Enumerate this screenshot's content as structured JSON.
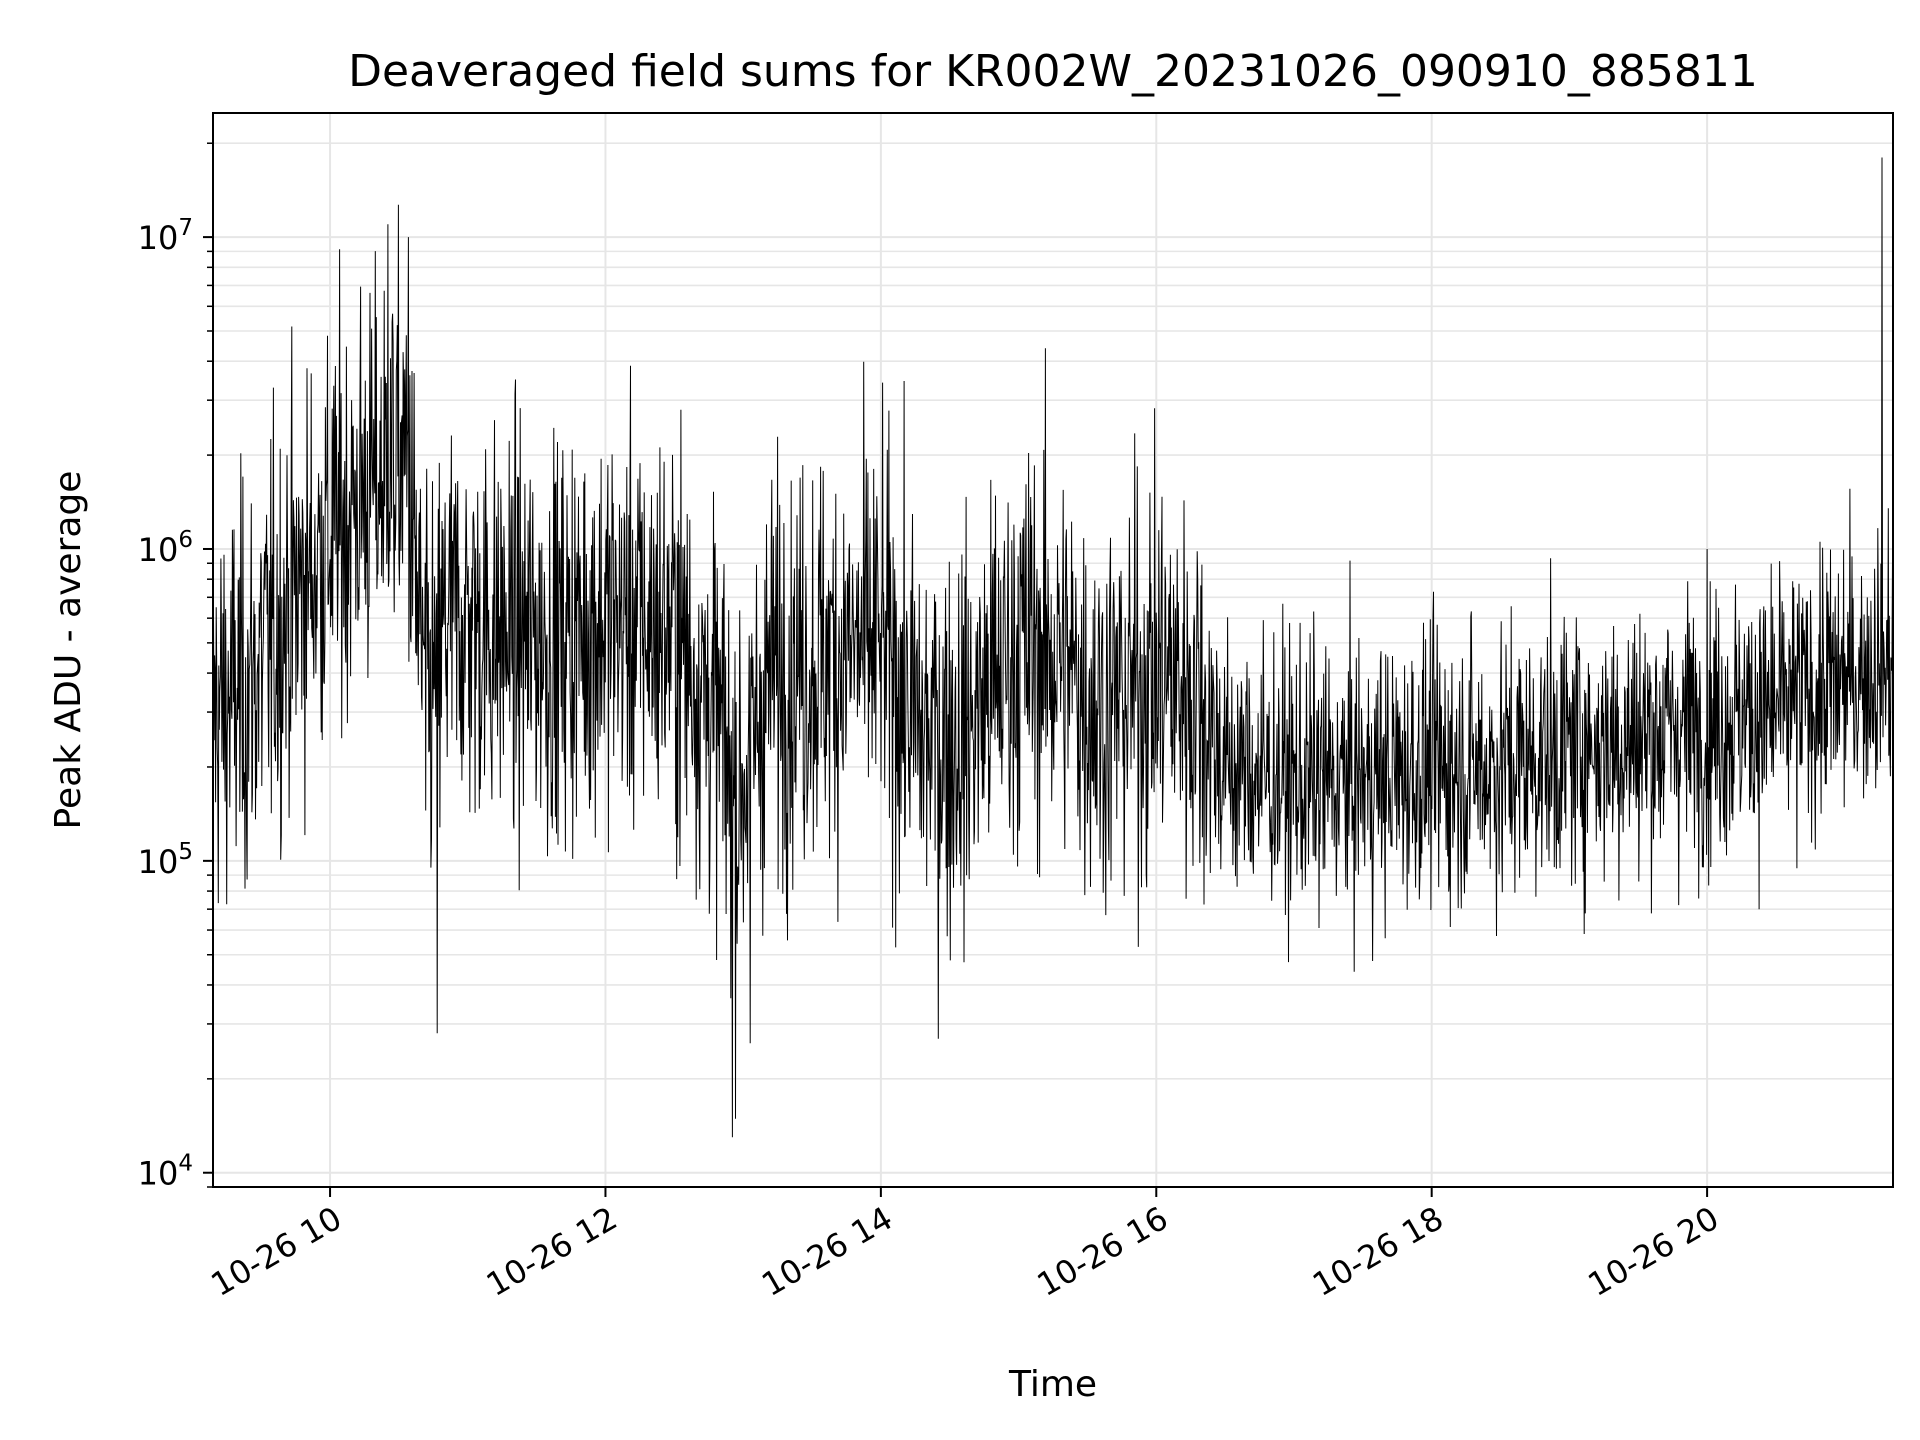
{
  "chart_data": {
    "type": "line",
    "title": "Deaveraged field sums for KR002W_20231026_090910_885811",
    "xlabel": "Time",
    "ylabel": "Peak ADU - average",
    "yscale": "log",
    "ylim": [
      9000,
      25000000
    ],
    "xlim_hours": [
      9.15,
      21.35
    ],
    "x_tick_labels": [
      "10-26 10",
      "10-26 12",
      "10-26 14",
      "10-26 16",
      "10-26 18",
      "10-26 20"
    ],
    "x_tick_hours": [
      10,
      12,
      14,
      16,
      18,
      20
    ],
    "y_ticks": [
      {
        "base": "10",
        "exp": "4",
        "value": 10000
      },
      {
        "base": "10",
        "exp": "5",
        "value": 100000
      },
      {
        "base": "10",
        "exp": "6",
        "value": 1000000
      },
      {
        "base": "10",
        "exp": "7",
        "value": 10000000
      }
    ],
    "grid": true,
    "series": [
      {
        "color": "#000000",
        "profile": {
          "x_hours": [
            9.15,
            9.4,
            9.7,
            10.0,
            10.3,
            10.55,
            10.7,
            10.85,
            11.2,
            11.6,
            12.0,
            12.5,
            12.8,
            12.95,
            13.2,
            13.6,
            14.0,
            14.3,
            14.6,
            15.0,
            15.3,
            15.6,
            16.0,
            16.3,
            16.5,
            17.0,
            17.5,
            18.0,
            18.5,
            19.0,
            19.5,
            20.0,
            20.5,
            21.0,
            21.35
          ],
          "median": [
            300000,
            350000,
            650000,
            1100000,
            1600000,
            2000000,
            300000,
            600000,
            550000,
            500000,
            600000,
            550000,
            300000,
            150000,
            400000,
            450000,
            500000,
            250000,
            250000,
            500000,
            450000,
            300000,
            400000,
            350000,
            200000,
            180000,
            180000,
            200000,
            200000,
            230000,
            250000,
            280000,
            300000,
            380000,
            450000
          ]
        },
        "spikes": [
          {
            "hour": 12.92,
            "value": 13000
          },
          {
            "hour": 21.27,
            "value": 18000000
          },
          {
            "hour": 10.42,
            "value": 11000000
          },
          {
            "hour": 10.57,
            "value": 10000000
          },
          {
            "hour": 10.78,
            "value": 28000
          },
          {
            "hour": 13.05,
            "value": 26000
          }
        ]
      }
    ]
  }
}
